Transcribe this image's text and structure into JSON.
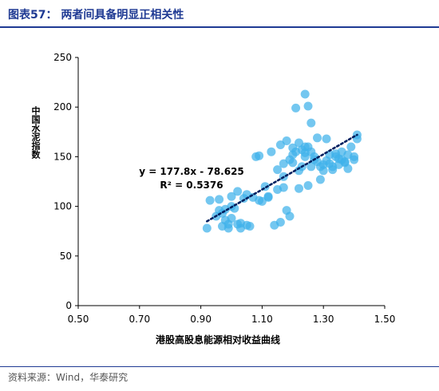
{
  "header": {
    "title": "图表57：  两者间具备明显正相关性"
  },
  "footer": {
    "source": "资料来源：Wind，华泰研究"
  },
  "chart_data": {
    "type": "scatter",
    "xlabel": "港股高股息能源相对收益曲线",
    "ylabel": "中国水泥指数",
    "xlim": [
      0.5,
      1.5
    ],
    "ylim": [
      0,
      250
    ],
    "xticks": [
      "0.50",
      "0.70",
      "0.90",
      "1.10",
      "1.30",
      "1.50"
    ],
    "yticks": [
      "0",
      "50",
      "100",
      "150",
      "200",
      "250"
    ],
    "grid": false,
    "marker_color": "#3eb2ea",
    "trendline_color": "#002060",
    "annotations": [
      "y = 177.8x - 78.625",
      "R² = 0.5376"
    ],
    "trendline": {
      "slope": 177.8,
      "intercept": -78.625,
      "x_range": [
        0.92,
        1.41
      ]
    },
    "points": [
      [
        0.92,
        78
      ],
      [
        0.93,
        106
      ],
      [
        0.95,
        90
      ],
      [
        0.96,
        107
      ],
      [
        0.96,
        96
      ],
      [
        0.97,
        93
      ],
      [
        0.97,
        80
      ],
      [
        0.98,
        86
      ],
      [
        0.98,
        97
      ],
      [
        0.99,
        78
      ],
      [
        0.99,
        82
      ],
      [
        1.0,
        110
      ],
      [
        1.0,
        88
      ],
      [
        1.0,
        100
      ],
      [
        1.01,
        98
      ],
      [
        1.02,
        115
      ],
      [
        1.02,
        82
      ],
      [
        1.03,
        83
      ],
      [
        1.03,
        78
      ],
      [
        1.04,
        108
      ],
      [
        1.05,
        112
      ],
      [
        1.05,
        81
      ],
      [
        1.06,
        80
      ],
      [
        1.07,
        109
      ],
      [
        1.08,
        150
      ],
      [
        1.09,
        106
      ],
      [
        1.09,
        151
      ],
      [
        1.1,
        105
      ],
      [
        1.11,
        120
      ],
      [
        1.12,
        110
      ],
      [
        1.12,
        109
      ],
      [
        1.13,
        155
      ],
      [
        1.14,
        81
      ],
      [
        1.15,
        117
      ],
      [
        1.15,
        137
      ],
      [
        1.16,
        84
      ],
      [
        1.16,
        162
      ],
      [
        1.17,
        143
      ],
      [
        1.17,
        130
      ],
      [
        1.17,
        119
      ],
      [
        1.18,
        166
      ],
      [
        1.18,
        96
      ],
      [
        1.19,
        90
      ],
      [
        1.19,
        147
      ],
      [
        1.2,
        159
      ],
      [
        1.2,
        144
      ],
      [
        1.2,
        152
      ],
      [
        1.21,
        199
      ],
      [
        1.21,
        155
      ],
      [
        1.22,
        164
      ],
      [
        1.22,
        118
      ],
      [
        1.22,
        136
      ],
      [
        1.23,
        140
      ],
      [
        1.23,
        157
      ],
      [
        1.24,
        160
      ],
      [
        1.24,
        150
      ],
      [
        1.24,
        213
      ],
      [
        1.24,
        154
      ],
      [
        1.25,
        160
      ],
      [
        1.25,
        201
      ],
      [
        1.25,
        121
      ],
      [
        1.26,
        140
      ],
      [
        1.26,
        155
      ],
      [
        1.26,
        184
      ],
      [
        1.27,
        150
      ],
      [
        1.27,
        147
      ],
      [
        1.28,
        169
      ],
      [
        1.28,
        145
      ],
      [
        1.29,
        127
      ],
      [
        1.29,
        140
      ],
      [
        1.3,
        136
      ],
      [
        1.3,
        142
      ],
      [
        1.31,
        168
      ],
      [
        1.31,
        146
      ],
      [
        1.32,
        152
      ],
      [
        1.32,
        143
      ],
      [
        1.33,
        140
      ],
      [
        1.33,
        137
      ],
      [
        1.34,
        150
      ],
      [
        1.34,
        153
      ],
      [
        1.35,
        148
      ],
      [
        1.35,
        142
      ],
      [
        1.36,
        155
      ],
      [
        1.36,
        147
      ],
      [
        1.37,
        145
      ],
      [
        1.37,
        144
      ],
      [
        1.38,
        152
      ],
      [
        1.38,
        138
      ],
      [
        1.39,
        160
      ],
      [
        1.4,
        147
      ],
      [
        1.4,
        150
      ],
      [
        1.41,
        172
      ],
      [
        1.41,
        168
      ]
    ]
  }
}
